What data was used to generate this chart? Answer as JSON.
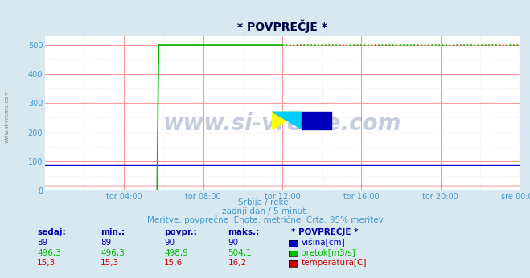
{
  "title": "* POVPREČJE *",
  "subtitle1": "Srbija / reke.",
  "subtitle2": "zadnji dan / 5 minut.",
  "subtitle3": "Meritve: povprečne  Enote: metrične  Črta: 95% meritev",
  "bg_color": "#d8e8f0",
  "plot_bg_color": "#ffffff",
  "grid_color_major": "#ff9999",
  "grid_color_minor": "#ffdddd",
  "x_ticks_labels": [
    "tor 04:00",
    "tor 08:00",
    "tor 12:00",
    "tor 16:00",
    "tor 20:00",
    "sre 00:00"
  ],
  "x_ticks_positions": [
    4,
    8,
    12,
    16,
    20,
    24
  ],
  "x_minor_ticks": [
    2,
    6,
    10,
    14,
    18,
    22
  ],
  "y_ticks": [
    0,
    100,
    200,
    300,
    400,
    500
  ],
  "y_minor_ticks": [
    50,
    150,
    250,
    350,
    450
  ],
  "ylim": [
    0,
    530
  ],
  "xlim": [
    0,
    24
  ],
  "watermark": "www.si-vreme.com",
  "watermark_color": "#1a3a7a",
  "line_visina_color": "#0000cc",
  "line_pretok_color": "#00bb00",
  "line_temp_color": "#cc0000",
  "visina_value": 89.0,
  "pretok_value": 500.0,
  "pretok_start_x": 5.76,
  "temp_value": 15.3,
  "legend_headers": [
    "sedaj:",
    "min.:",
    "povpr.:",
    "maks.:",
    "* POVPREČJE *"
  ],
  "legend_row1": [
    "89",
    "89",
    "90",
    "90",
    "višina[cm]"
  ],
  "legend_row2": [
    "496,3",
    "496,3",
    "498,9",
    "504,1",
    "pretok[m3/s]"
  ],
  "legend_row3": [
    "15,3",
    "15,3",
    "15,6",
    "16,2",
    "temperatura[C]"
  ],
  "legend_color1": "#0000cc",
  "legend_color2": "#00bb00",
  "legend_color3": "#cc0000",
  "title_color": "#000044",
  "axis_label_color": "#4499cc",
  "legend_header_color": "#0000aa",
  "sidebar_text": "www.si-vreme.com",
  "sidebar_color": "#888888",
  "logo_yellow": "#ffff00",
  "logo_cyan": "#00ccff",
  "logo_blue": "#0000bb",
  "arrow_color": "#cc0000"
}
